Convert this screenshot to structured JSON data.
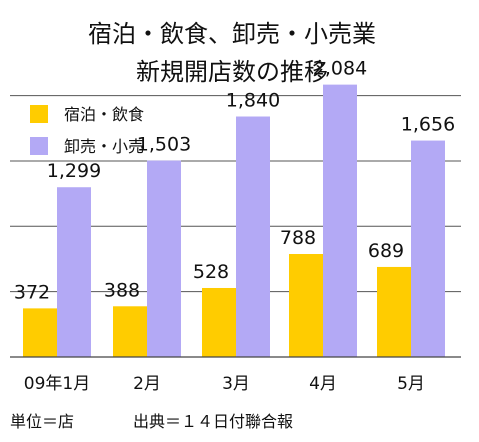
{
  "chart_data": {
    "type": "bar",
    "title": [
      "宿泊・飲食、卸売・小売業",
      "新規開店数の推移"
    ],
    "categories": [
      "09年1月",
      "2月",
      "3月",
      "4月",
      "5月"
    ],
    "series": [
      {
        "name": "宿泊・飲食",
        "color": "#ffcc00",
        "values": [
          372,
          388,
          528,
          788,
          689
        ],
        "labels": [
          "372",
          "388",
          "528",
          "788",
          "689"
        ]
      },
      {
        "name": "卸売・小売",
        "color": "#b3a9f5",
        "values": [
          1299,
          1503,
          1840,
          2084,
          1656
        ],
        "labels": [
          "1,299",
          "1,503",
          "1,840",
          "2,084",
          "1,656"
        ]
      }
    ],
    "ylim": [
      0,
      2100
    ],
    "gridlines": [
      500,
      1000,
      1500,
      2000
    ],
    "legend_position": "top-left",
    "xlabel": "",
    "ylabel": ""
  },
  "footer": {
    "unit": "単位＝店",
    "source": "出典＝１４日付聯合報"
  }
}
